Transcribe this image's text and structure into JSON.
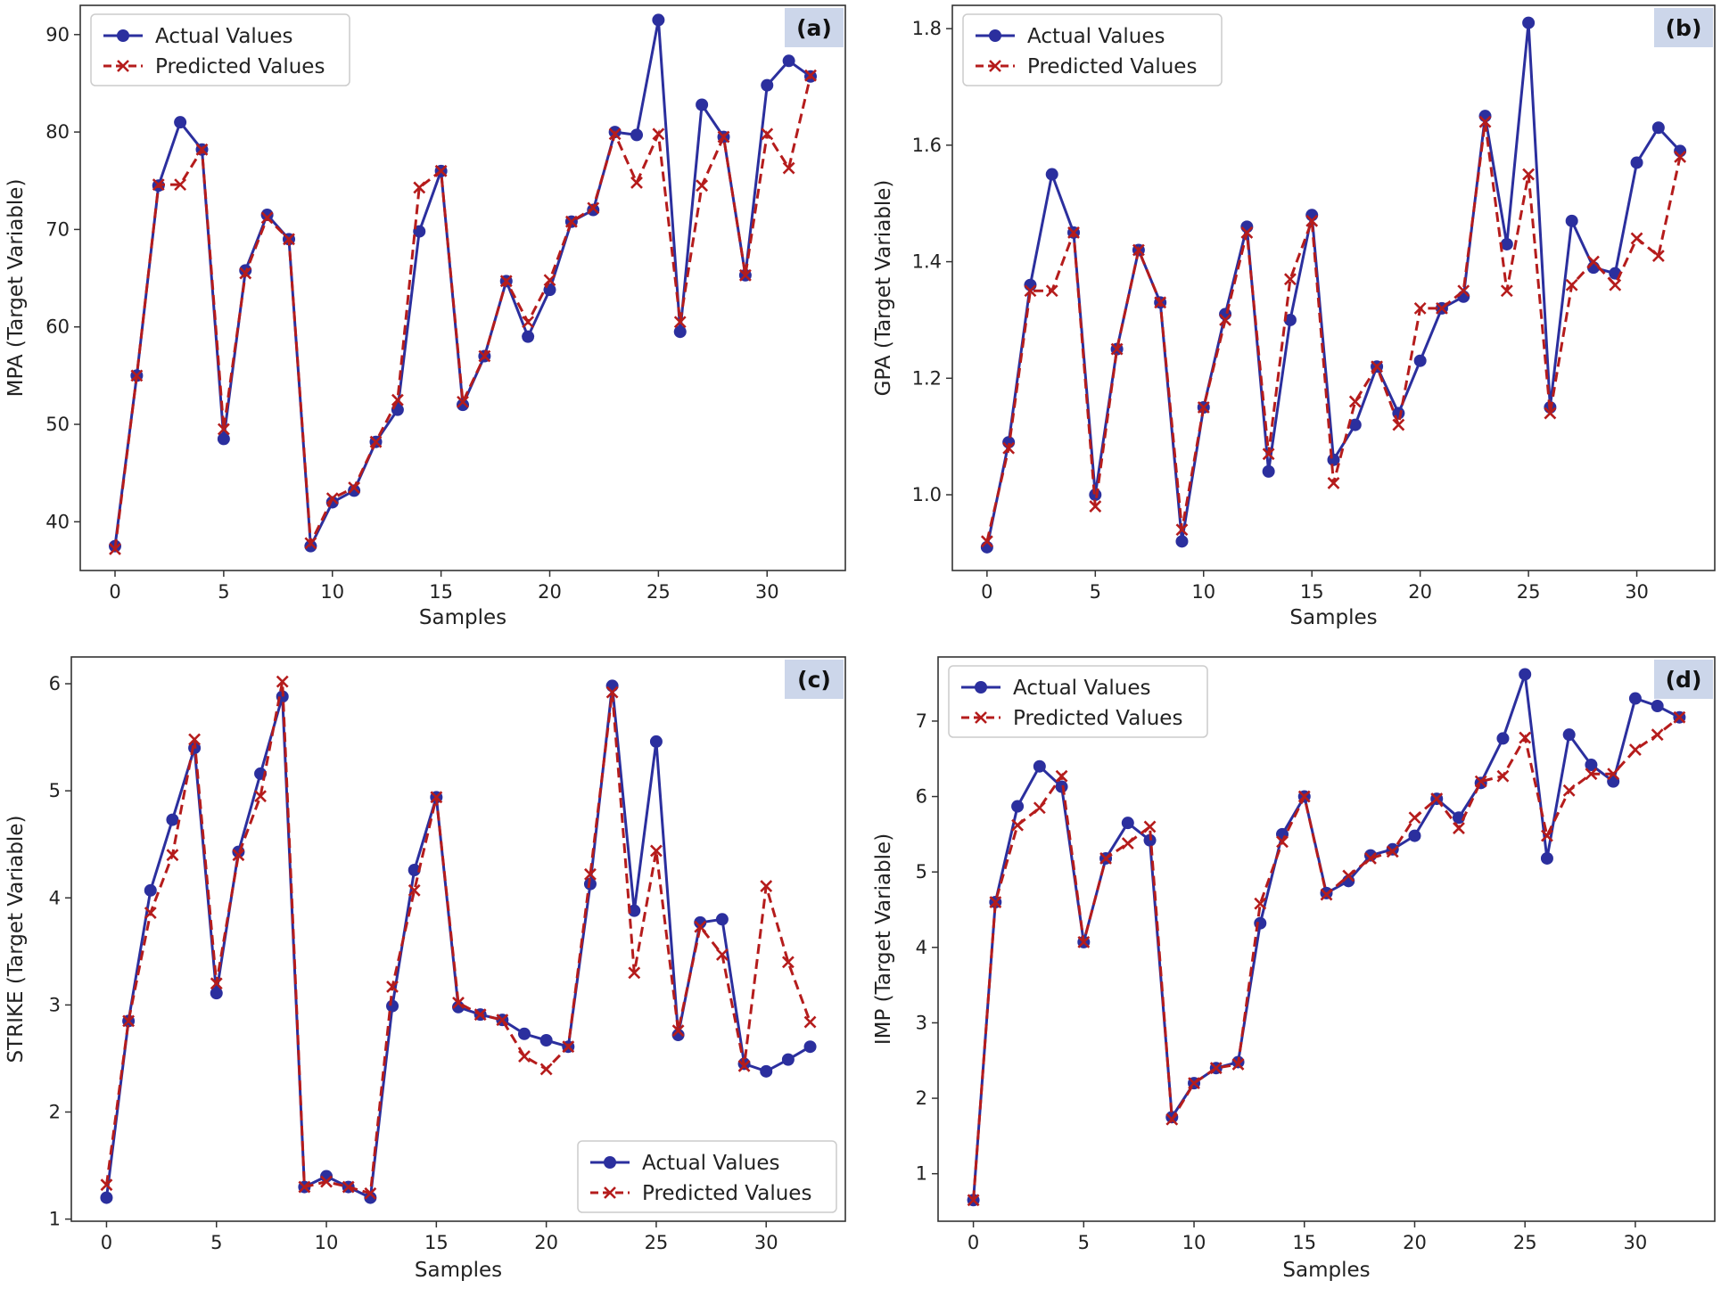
{
  "colors": {
    "actual": "#2b2f9e",
    "predicted": "#b51c1c",
    "tag_bg": "#ccd6ea"
  },
  "chart_data": [
    {
      "type": "line",
      "tag": "(a)",
      "title": "",
      "xlabel": "Samples",
      "ylabel": "MPA (Target Variable)",
      "xlim": [
        -1.6,
        33.6
      ],
      "ylim": [
        35,
        93
      ],
      "xticks": [
        0,
        5,
        10,
        15,
        20,
        25,
        30
      ],
      "yticks": [
        40,
        50,
        60,
        70,
        80,
        90
      ],
      "legend": "top-left",
      "x": [
        0,
        1,
        2,
        3,
        4,
        5,
        6,
        7,
        8,
        9,
        10,
        11,
        12,
        13,
        14,
        15,
        16,
        17,
        18,
        19,
        20,
        21,
        22,
        23,
        24,
        25,
        26,
        27,
        28,
        29,
        30,
        31,
        32
      ],
      "series": [
        {
          "name": "Actual Values",
          "style": "solid-circle",
          "values": [
            37.5,
            55,
            74.5,
            81,
            78.2,
            48.5,
            65.8,
            71.5,
            69,
            37.5,
            42,
            43.2,
            48.2,
            51.5,
            69.8,
            76,
            52,
            57,
            64.7,
            59,
            63.8,
            70.8,
            72,
            80,
            79.7,
            91.5,
            59.5,
            82.8,
            79.5,
            65.3,
            84.8,
            87.3,
            85.7
          ]
        },
        {
          "name": "Predicted Values",
          "style": "dashed-x",
          "values": [
            37.2,
            55,
            74.6,
            74.6,
            78.2,
            49.5,
            65.5,
            71.2,
            69,
            37.8,
            42.4,
            43.5,
            48.2,
            52.5,
            74.3,
            76,
            52.3,
            57,
            64.7,
            60.5,
            64.8,
            70.8,
            72.2,
            79.8,
            74.8,
            79.8,
            60.5,
            74.5,
            79.5,
            65.3,
            79.8,
            76.3,
            85.8
          ]
        }
      ]
    },
    {
      "type": "line",
      "tag": "(b)",
      "title": "",
      "xlabel": "Samples",
      "ylabel": "GPA (Target Variable)",
      "xlim": [
        -1.6,
        33.6
      ],
      "ylim": [
        0.87,
        1.84
      ],
      "xticks": [
        0,
        5,
        10,
        15,
        20,
        25,
        30
      ],
      "yticks": [
        1.0,
        1.2,
        1.4,
        1.6,
        1.8
      ],
      "ytick_labels": [
        "1.0",
        "1.2",
        "1.4",
        "1.6",
        "1.8"
      ],
      "legend": "top-left",
      "x": [
        0,
        1,
        2,
        3,
        4,
        5,
        6,
        7,
        8,
        9,
        10,
        11,
        12,
        13,
        14,
        15,
        16,
        17,
        18,
        19,
        20,
        21,
        22,
        23,
        24,
        25,
        26,
        27,
        28,
        29,
        30,
        31,
        32
      ],
      "series": [
        {
          "name": "Actual Values",
          "style": "solid-circle",
          "values": [
            0.91,
            1.09,
            1.36,
            1.55,
            1.45,
            1.0,
            1.25,
            1.42,
            1.33,
            0.92,
            1.15,
            1.31,
            1.46,
            1.04,
            1.3,
            1.48,
            1.06,
            1.12,
            1.22,
            1.14,
            1.23,
            1.32,
            1.34,
            1.65,
            1.43,
            1.81,
            1.15,
            1.47,
            1.39,
            1.38,
            1.57,
            1.63,
            1.59
          ]
        },
        {
          "name": "Predicted Values",
          "style": "dashed-x",
          "values": [
            0.92,
            1.08,
            1.35,
            1.35,
            1.45,
            0.98,
            1.25,
            1.42,
            1.33,
            0.94,
            1.15,
            1.3,
            1.45,
            1.07,
            1.37,
            1.47,
            1.02,
            1.16,
            1.22,
            1.12,
            1.32,
            1.32,
            1.35,
            1.64,
            1.35,
            1.55,
            1.14,
            1.36,
            1.4,
            1.36,
            1.44,
            1.41,
            1.58
          ]
        }
      ]
    },
    {
      "type": "line",
      "tag": "(c)",
      "title": "",
      "xlabel": "Samples",
      "ylabel": "STRIKE (Target Variable)",
      "xlim": [
        -1.6,
        33.6
      ],
      "ylim": [
        0.98,
        6.25
      ],
      "xticks": [
        0,
        5,
        10,
        15,
        20,
        25,
        30
      ],
      "yticks": [
        1,
        2,
        3,
        4,
        5,
        6
      ],
      "legend": "bottom-right",
      "x": [
        0,
        1,
        2,
        3,
        4,
        5,
        6,
        7,
        8,
        9,
        10,
        11,
        12,
        13,
        14,
        15,
        16,
        17,
        18,
        19,
        20,
        21,
        22,
        23,
        24,
        25,
        26,
        27,
        28,
        29,
        30,
        31,
        32
      ],
      "series": [
        {
          "name": "Actual Values",
          "style": "solid-circle",
          "values": [
            1.2,
            2.85,
            4.07,
            4.73,
            5.4,
            3.11,
            4.43,
            5.16,
            5.88,
            1.3,
            1.4,
            1.3,
            1.2,
            2.99,
            4.26,
            4.94,
            2.98,
            2.91,
            2.86,
            2.73,
            2.67,
            2.61,
            4.13,
            5.98,
            3.88,
            5.46,
            2.72,
            3.77,
            3.8,
            2.45,
            2.38,
            2.49,
            2.61
          ]
        },
        {
          "name": "Predicted Values",
          "style": "dashed-x",
          "values": [
            1.32,
            2.85,
            3.86,
            4.4,
            5.48,
            3.2,
            4.4,
            4.95,
            6.02,
            1.3,
            1.35,
            1.3,
            1.24,
            3.17,
            4.07,
            4.94,
            3.02,
            2.91,
            2.86,
            2.52,
            2.4,
            2.61,
            4.22,
            5.92,
            3.3,
            4.44,
            2.76,
            3.73,
            3.47,
            2.43,
            4.11,
            3.4,
            2.84
          ]
        }
      ]
    },
    {
      "type": "line",
      "tag": "(d)",
      "title": "",
      "xlabel": "Samples",
      "ylabel": "IMP (Target Variable)",
      "xlim": [
        -1.6,
        33.6
      ],
      "ylim": [
        0.37,
        7.85
      ],
      "xticks": [
        0,
        5,
        10,
        15,
        20,
        25,
        30
      ],
      "yticks": [
        1,
        2,
        3,
        4,
        5,
        6,
        7
      ],
      "legend": "top-left",
      "x": [
        0,
        1,
        2,
        3,
        4,
        5,
        6,
        7,
        8,
        9,
        10,
        11,
        12,
        13,
        14,
        15,
        16,
        17,
        18,
        19,
        20,
        21,
        22,
        23,
        24,
        25,
        26,
        27,
        28,
        29,
        30,
        31,
        32
      ],
      "series": [
        {
          "name": "Actual Values",
          "style": "solid-circle",
          "values": [
            0.65,
            4.6,
            5.87,
            6.4,
            6.13,
            4.07,
            5.18,
            5.65,
            5.42,
            1.75,
            2.2,
            2.4,
            2.48,
            4.32,
            5.5,
            6.0,
            4.72,
            4.88,
            5.22,
            5.3,
            5.48,
            5.97,
            5.72,
            6.18,
            6.77,
            7.62,
            5.18,
            6.82,
            6.42,
            6.2,
            7.3,
            7.2,
            7.05
          ]
        },
        {
          "name": "Predicted Values",
          "style": "dashed-x",
          "values": [
            0.65,
            4.6,
            5.62,
            5.85,
            6.27,
            4.07,
            5.18,
            5.38,
            5.6,
            1.72,
            2.2,
            2.4,
            2.45,
            4.58,
            5.4,
            6.0,
            4.7,
            4.95,
            5.18,
            5.27,
            5.72,
            5.97,
            5.58,
            6.2,
            6.27,
            6.78,
            5.48,
            6.08,
            6.3,
            6.3,
            6.62,
            6.82,
            7.05
          ]
        }
      ]
    }
  ]
}
